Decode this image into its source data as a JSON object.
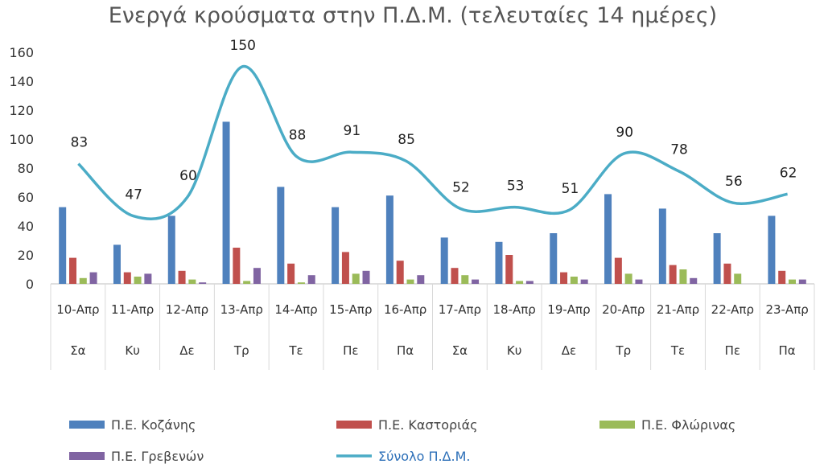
{
  "chart_data": {
    "type": "bar",
    "title": "Ενεργά κρούσματα στην Π.Δ.Μ. (τελευταίες 14 ημέρες)",
    "categories": [
      "10-Απρ",
      "11-Απρ",
      "12-Απρ",
      "13-Απρ",
      "14-Απρ",
      "15-Απρ",
      "16-Απρ",
      "17-Απρ",
      "18-Απρ",
      "19-Απρ",
      "20-Απρ",
      "21-Απρ",
      "22-Απρ",
      "23-Απρ"
    ],
    "days": [
      "Σα",
      "Κυ",
      "Δε",
      "Τρ",
      "Τε",
      "Πε",
      "Πα",
      "Σα",
      "Κυ",
      "Δε",
      "Τρ",
      "Τε",
      "Πε",
      "Πα"
    ],
    "ylim": [
      0,
      160
    ],
    "yticks": [
      0,
      20,
      40,
      60,
      80,
      100,
      120,
      140,
      160
    ],
    "grid": false,
    "legend_position": "bottom",
    "series": [
      {
        "name": "Π.Ε. Κοζάνης",
        "kind": "bar",
        "color": "#4F81BD",
        "values": [
          53,
          27,
          47,
          112,
          67,
          53,
          61,
          32,
          29,
          35,
          62,
          52,
          35,
          47
        ]
      },
      {
        "name": "Π.Ε. Καστοριάς",
        "kind": "bar",
        "color": "#C0504D",
        "values": [
          18,
          8,
          9,
          25,
          14,
          22,
          16,
          11,
          20,
          8,
          18,
          13,
          14,
          9
        ]
      },
      {
        "name": "Π.Ε. Φλώρινας",
        "kind": "bar",
        "color": "#9BBB59",
        "values": [
          4,
          5,
          3,
          2,
          1,
          7,
          3,
          6,
          2,
          5,
          7,
          10,
          7,
          3
        ]
      },
      {
        "name": "Π.Ε. Γρεβενών",
        "kind": "bar",
        "color": "#8064A2",
        "values": [
          8,
          7,
          1,
          11,
          6,
          9,
          6,
          3,
          2,
          3,
          3,
          4,
          0,
          3
        ]
      },
      {
        "name": "Σύνολο Π.Δ.Μ.",
        "kind": "line",
        "color": "#4BACC6",
        "values": [
          83,
          47,
          60,
          150,
          88,
          91,
          85,
          52,
          53,
          51,
          90,
          78,
          56,
          62
        ]
      }
    ]
  }
}
